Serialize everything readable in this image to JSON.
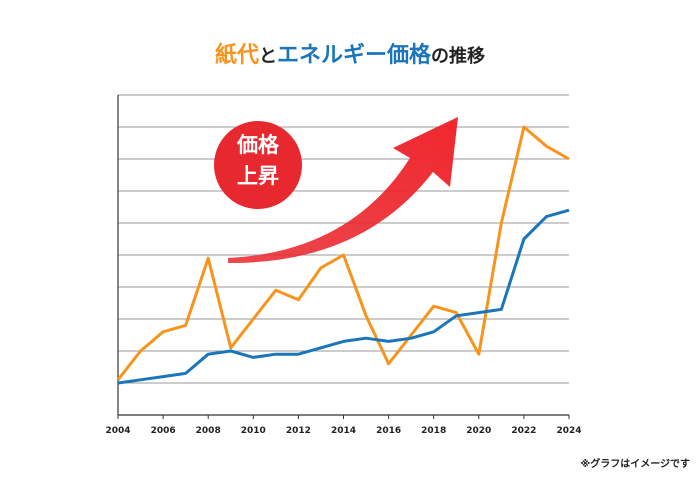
{
  "chart_data": {
    "type": "line",
    "title_parts": [
      "紙代",
      "と",
      "エネルギー価格",
      "の推移"
    ],
    "annotation": [
      "価格",
      "上昇"
    ],
    "note": "※グラフはイメージです",
    "x": [
      2004,
      2005,
      2006,
      2007,
      2008,
      2009,
      2010,
      2011,
      2012,
      2013,
      2014,
      2015,
      2016,
      2017,
      2018,
      2019,
      2020,
      2021,
      2022,
      2023,
      2024
    ],
    "series": [
      {
        "color": "#f7941d",
        "values": [
          1.1,
          2.0,
          2.6,
          2.8,
          4.9,
          2.1,
          3.0,
          3.9,
          3.6,
          4.6,
          5.0,
          3.1,
          1.6,
          2.5,
          3.4,
          3.2,
          1.9,
          6.0,
          9.0,
          8.4,
          8.0
        ]
      },
      {
        "color": "#1a75bb",
        "values": [
          1.0,
          1.1,
          1.2,
          1.3,
          1.9,
          2.0,
          1.8,
          1.9,
          1.9,
          2.1,
          2.3,
          2.4,
          2.3,
          2.4,
          2.6,
          3.1,
          3.2,
          3.3,
          5.5,
          6.2,
          6.4
        ]
      }
    ],
    "xlim": [
      2004,
      2024
    ],
    "xticks": [
      2004,
      2006,
      2008,
      2010,
      2012,
      2014,
      2016,
      2018,
      2020,
      2022,
      2024
    ],
    "ylim": [
      0,
      10
    ],
    "yticks": [
      1,
      2,
      3,
      4,
      5,
      6,
      7,
      8,
      9,
      10
    ],
    "grid": true
  }
}
